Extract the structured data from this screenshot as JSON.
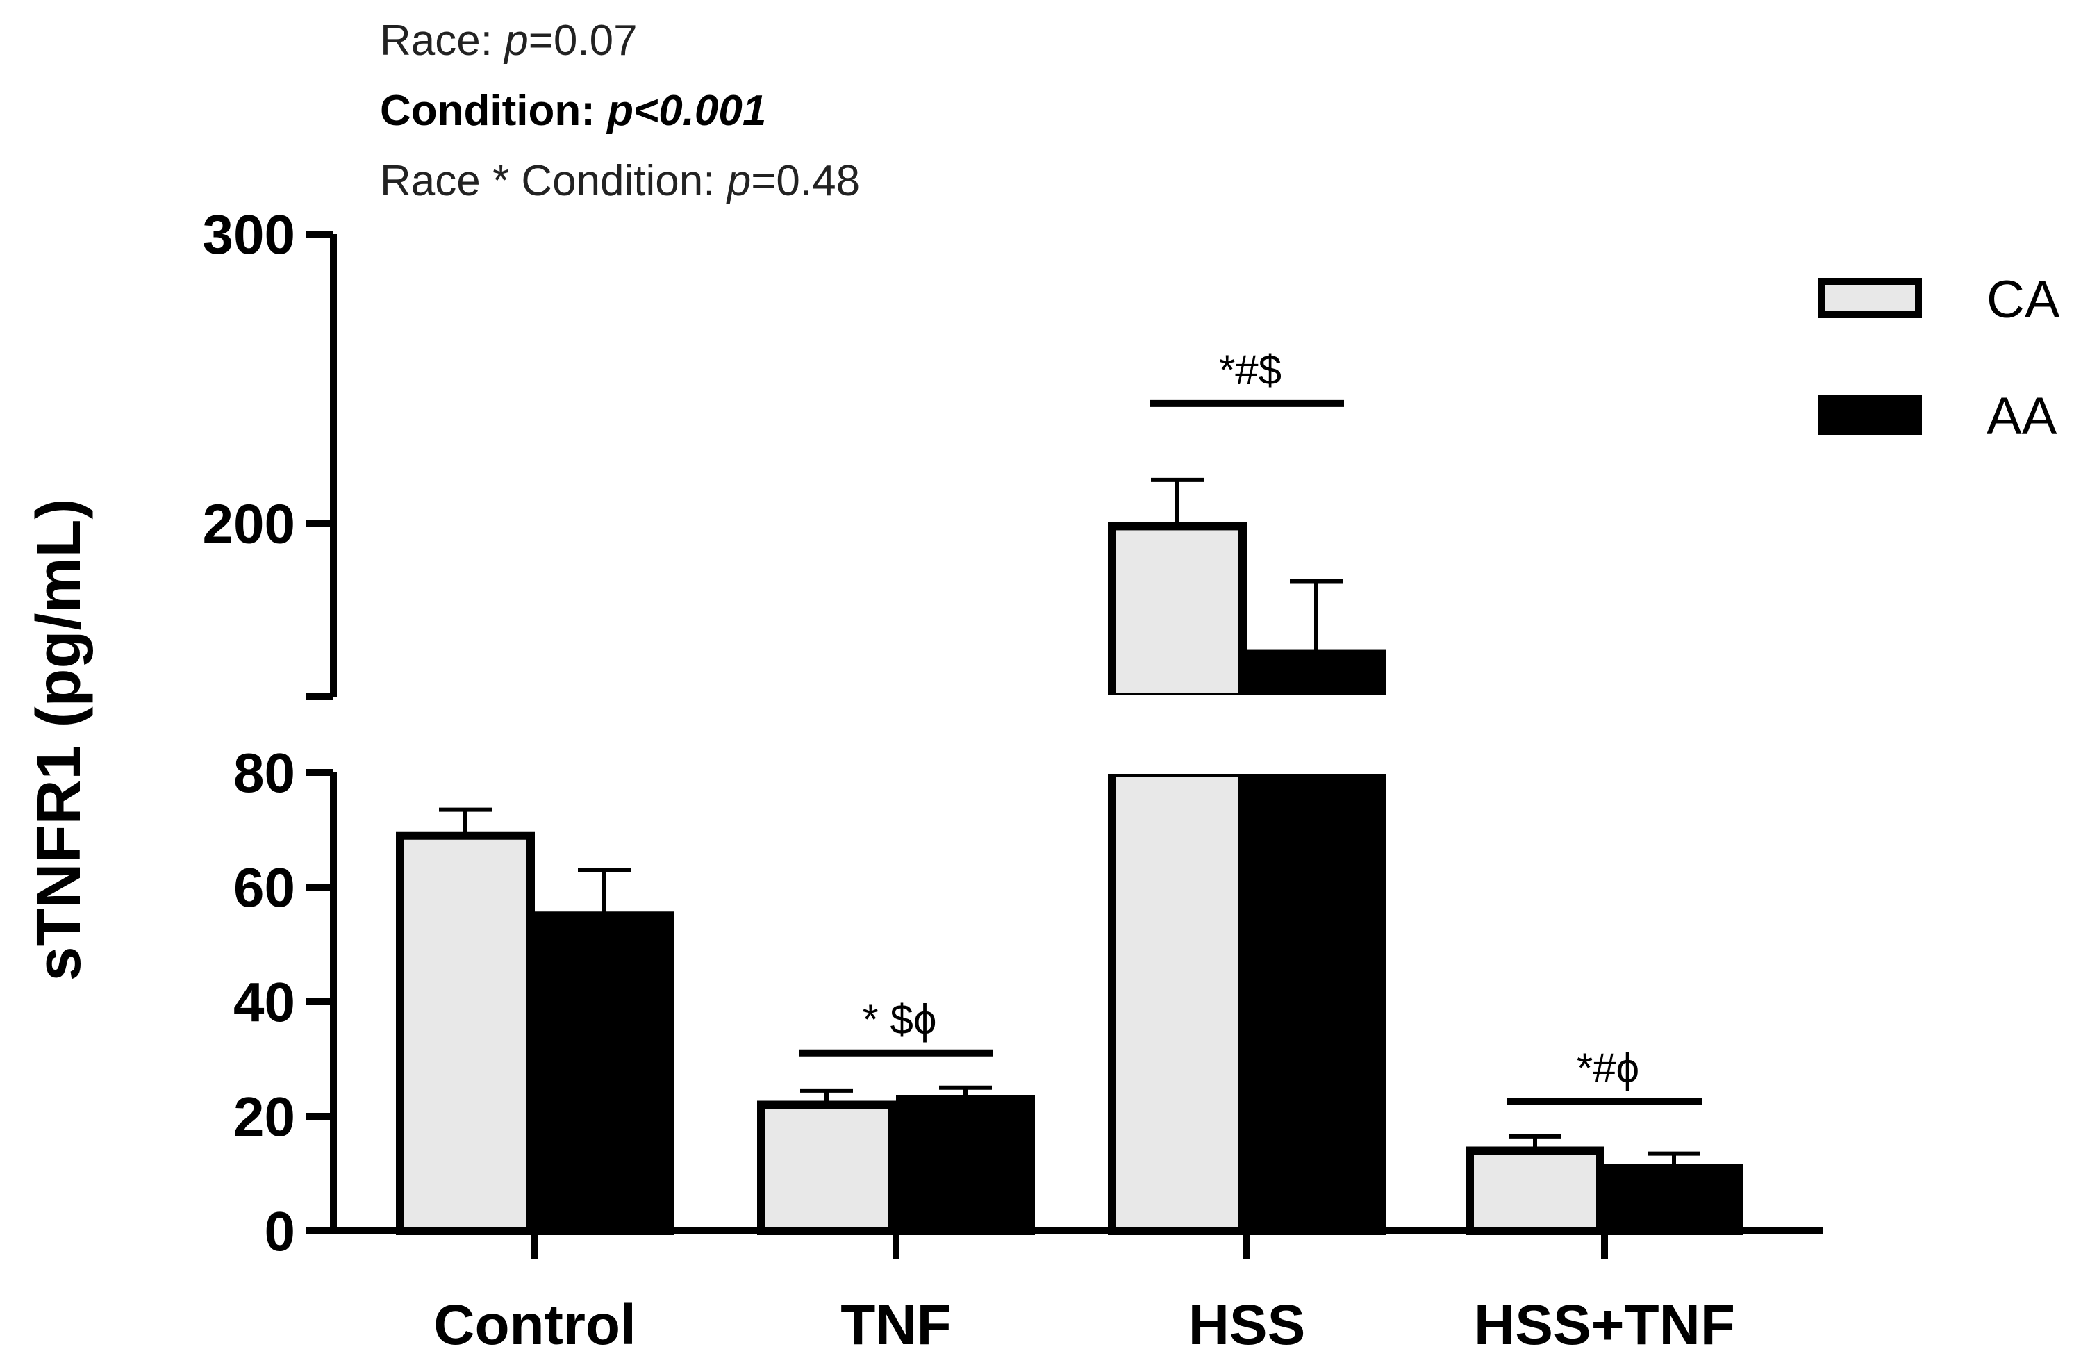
{
  "stats": {
    "race_label": "Race: ",
    "race_p": "p",
    "race_val": "=0.07",
    "condition_label": "Condition: ",
    "condition_p": "p<0.001",
    "interaction_label": "Race * Condition: ",
    "interaction_p": "p",
    "interaction_val": "=0.48"
  },
  "chart_data": {
    "type": "bar",
    "title": "",
    "xlabel": "",
    "ylabel": "sTNFR1 (pg/mL)",
    "categories": [
      "Control",
      "TNF",
      "HSS",
      "HSS+TNF"
    ],
    "series": [
      {
        "name": "CA",
        "color": "#e8e8e8",
        "values": [
          69,
          22,
          199,
          14
        ],
        "error": [
          4.5,
          2.5,
          16,
          2.5
        ]
      },
      {
        "name": "AA",
        "color": "#000000",
        "values": [
          55,
          23,
          155,
          11
        ],
        "error": [
          8,
          2,
          25,
          2.5
        ]
      }
    ],
    "axis_break": {
      "lower": [
        0,
        80
      ],
      "upper": [
        140,
        300
      ]
    },
    "y_ticks_lower": [
      0,
      20,
      40,
      60,
      80
    ],
    "y_ticks_upper": [
      200,
      300
    ],
    "significance": [
      {
        "category": "TNF",
        "label": "* $ϕ"
      },
      {
        "category": "HSS",
        "label": "*#$"
      },
      {
        "category": "HSS+TNF",
        "label": "*#ϕ"
      }
    ],
    "legend_position": "top-right",
    "grid": false
  }
}
